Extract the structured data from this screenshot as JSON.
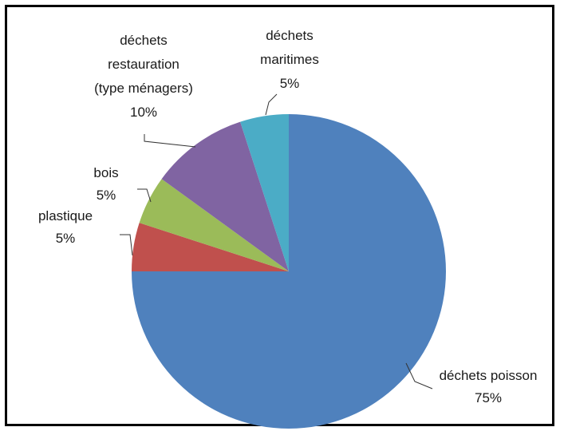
{
  "chart_data": {
    "type": "pie",
    "slices": [
      {
        "label_lines": [
          "déchets poisson",
          "75%"
        ],
        "value": 75,
        "color": "#4f81bd"
      },
      {
        "label_lines": [
          "plastique",
          "5%"
        ],
        "value": 5,
        "color": "#c0504d"
      },
      {
        "label_lines": [
          "bois",
          "5%"
        ],
        "value": 5,
        "color": "#9bbb59"
      },
      {
        "label_lines": [
          "déchets",
          "restauration",
          "(type ménagers)",
          "10%"
        ],
        "value": 10,
        "color": "#8064a2"
      },
      {
        "label_lines": [
          "déchets",
          "maritimes",
          "5%"
        ],
        "value": 5,
        "color": "#4bacc6"
      }
    ],
    "start_angle_deg": 0,
    "direction": "clockwise",
    "legend": "none"
  }
}
